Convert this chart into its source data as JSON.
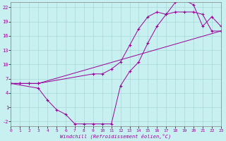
{
  "xlabel": "Windchill (Refroidissement éolien,°C)",
  "bg_color": "#c8f0f0",
  "grid_color": "#a8d8d8",
  "line_color": "#990099",
  "xlim": [
    0,
    23
  ],
  "ylim": [
    -3,
    23
  ],
  "xticks": [
    0,
    1,
    2,
    3,
    4,
    5,
    6,
    7,
    8,
    9,
    10,
    11,
    12,
    13,
    14,
    15,
    16,
    17,
    18,
    19,
    20,
    21,
    22,
    23
  ],
  "yticks": [
    -2,
    1,
    4,
    7,
    10,
    13,
    16,
    19,
    22
  ],
  "line1_x": [
    0,
    1,
    2,
    3,
    23
  ],
  "line1_y": [
    6,
    6,
    6,
    6,
    17
  ],
  "line2_x": [
    0,
    3,
    4,
    5,
    6,
    7,
    8,
    9,
    10,
    11,
    12,
    13,
    14,
    15,
    16,
    17,
    18,
    19,
    20,
    21,
    22,
    23
  ],
  "line2_y": [
    6,
    5,
    2.5,
    0.5,
    -0.5,
    -2.5,
    -2.5,
    -2.5,
    -2.5,
    -2.5,
    5.5,
    8.5,
    10.5,
    14.5,
    18,
    20.5,
    23,
    23.5,
    22.5,
    18,
    20,
    18
  ],
  "line3_x": [
    0,
    1,
    2,
    3,
    9,
    10,
    11,
    12,
    13,
    14,
    15,
    16,
    17,
    18,
    19,
    20,
    21,
    22,
    23
  ],
  "line3_y": [
    6,
    6,
    6,
    6,
    8,
    8,
    9,
    10.5,
    14,
    17.5,
    20,
    21,
    20.5,
    21,
    21,
    21,
    20.5,
    17,
    17
  ]
}
